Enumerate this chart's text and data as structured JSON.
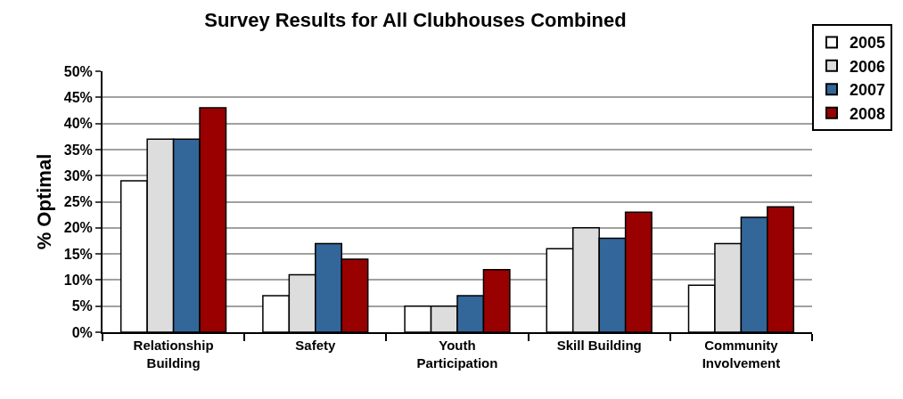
{
  "chart_data": {
    "type": "bar",
    "title": "Survey Results for All Clubhouses Combined",
    "ylabel": "% Optimal",
    "categories": [
      "Relationship\nBuilding",
      "Safety",
      "Youth\nParticipation",
      "Skill Building",
      "Community\nInvolvement"
    ],
    "series": [
      {
        "name": "2005",
        "color": "#ffffff",
        "values": [
          29,
          7,
          5,
          16,
          9
        ]
      },
      {
        "name": "2006",
        "color": "#dddddd",
        "values": [
          37,
          11,
          5,
          20,
          17
        ]
      },
      {
        "name": "2007",
        "color": "#336699",
        "values": [
          37,
          17,
          7,
          18,
          22
        ]
      },
      {
        "name": "2008",
        "color": "#990000",
        "values": [
          43,
          14,
          12,
          23,
          24
        ]
      }
    ],
    "ylim": [
      0,
      50
    ],
    "yticks": [
      {
        "value": 0,
        "label": "0%"
      },
      {
        "value": 5,
        "label": "5%"
      },
      {
        "value": 10,
        "label": "10%"
      },
      {
        "value": 15,
        "label": "15%"
      },
      {
        "value": 20,
        "label": "20%"
      },
      {
        "value": 25,
        "label": "25%"
      },
      {
        "value": 30,
        "label": "30%"
      },
      {
        "value": 35,
        "label": "35%"
      },
      {
        "value": 40,
        "label": "40%"
      },
      {
        "value": 45,
        "label": "45%"
      },
      {
        "value": 50,
        "label": "50%"
      }
    ],
    "grid": "y",
    "legend": "top right"
  }
}
